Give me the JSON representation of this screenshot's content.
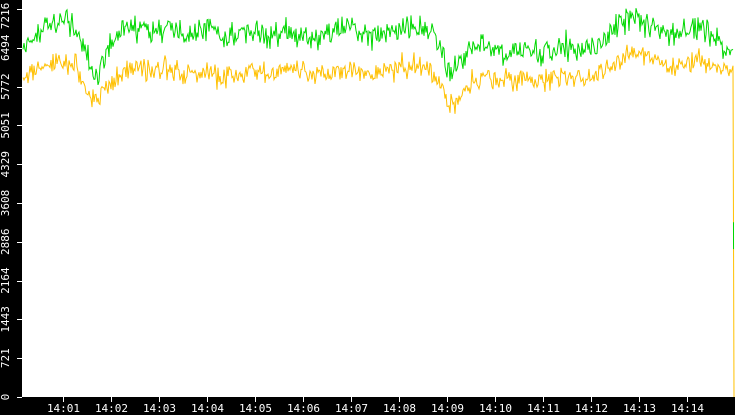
{
  "chart_data": {
    "type": "line",
    "title": "",
    "legend": "none",
    "grid": false,
    "background_color": "#ffffff",
    "axis_strip_color": "#000000",
    "tick_color": "#ffffff",
    "tick_text_color": "#ffffff",
    "x_unit": "time (HH:MM)",
    "x_range_minutes_after_1400": [
      0.15,
      15.0
    ],
    "ylim": [
      0,
      7216
    ],
    "y_ticks": [
      {
        "label": "0",
        "value": 0
      },
      {
        "label": "721",
        "value": 721
      },
      {
        "label": "1443",
        "value": 1443
      },
      {
        "label": "2164",
        "value": 2164
      },
      {
        "label": "2886",
        "value": 2886
      },
      {
        "label": "3608",
        "value": 3608
      },
      {
        "label": "4329",
        "value": 4329
      },
      {
        "label": "5051",
        "value": 5051
      },
      {
        "label": "5772",
        "value": 5772
      },
      {
        "label": "6494",
        "value": 6494
      },
      {
        "label": "7216",
        "value": 7216
      }
    ],
    "x_ticks": [
      {
        "label": "14:01",
        "minute": 1
      },
      {
        "label": "14:02",
        "minute": 2
      },
      {
        "label": "14:03",
        "minute": 3
      },
      {
        "label": "14:04",
        "minute": 4
      },
      {
        "label": "14:05",
        "minute": 5
      },
      {
        "label": "14:06",
        "minute": 6
      },
      {
        "label": "14:07",
        "minute": 7
      },
      {
        "label": "14:08",
        "minute": 8
      },
      {
        "label": "14:09",
        "minute": 9
      },
      {
        "label": "14:10",
        "minute": 10
      },
      {
        "label": "14:11",
        "minute": 11
      },
      {
        "label": "14:12",
        "minute": 12
      },
      {
        "label": "14:13",
        "minute": 13
      },
      {
        "label": "14:14",
        "minute": 14
      }
    ],
    "noise_seed": 97,
    "series": [
      {
        "name": "green-line",
        "color": "#00d800",
        "noise_amplitude": 290,
        "leading_edge_segment": {
          "from": 2750,
          "to": 3250
        },
        "points": [
          [
            0.15,
            6450
          ],
          [
            0.4,
            6700
          ],
          [
            0.7,
            6900
          ],
          [
            1.0,
            7000
          ],
          [
            1.3,
            6800
          ],
          [
            1.55,
            6150
          ],
          [
            1.7,
            5900
          ],
          [
            1.85,
            6250
          ],
          [
            2.0,
            6550
          ],
          [
            2.3,
            6800
          ],
          [
            2.6,
            6900
          ],
          [
            2.9,
            6800
          ],
          [
            3.2,
            6850
          ],
          [
            3.5,
            6750
          ],
          [
            3.8,
            6800
          ],
          [
            4.1,
            6850
          ],
          [
            4.4,
            6700
          ],
          [
            4.7,
            6750
          ],
          [
            5.0,
            6800
          ],
          [
            5.3,
            6700
          ],
          [
            5.6,
            6850
          ],
          [
            5.9,
            6750
          ],
          [
            6.2,
            6650
          ],
          [
            6.5,
            6750
          ],
          [
            6.8,
            6850
          ],
          [
            7.1,
            6800
          ],
          [
            7.4,
            6700
          ],
          [
            7.7,
            6750
          ],
          [
            8.0,
            6800
          ],
          [
            8.3,
            6900
          ],
          [
            8.6,
            6850
          ],
          [
            8.85,
            6500
          ],
          [
            9.05,
            6050
          ],
          [
            9.25,
            6150
          ],
          [
            9.5,
            6450
          ],
          [
            9.8,
            6550
          ],
          [
            10.1,
            6450
          ],
          [
            10.4,
            6400
          ],
          [
            10.7,
            6450
          ],
          [
            11.0,
            6380
          ],
          [
            11.3,
            6500
          ],
          [
            11.6,
            6450
          ],
          [
            11.9,
            6500
          ],
          [
            12.2,
            6600
          ],
          [
            12.5,
            6850
          ],
          [
            12.8,
            7050
          ],
          [
            13.1,
            6950
          ],
          [
            13.4,
            6820
          ],
          [
            13.7,
            6760
          ],
          [
            14.0,
            6800
          ],
          [
            14.3,
            6850
          ],
          [
            14.6,
            6650
          ],
          [
            14.95,
            6500
          ]
        ]
      },
      {
        "name": "yellow-line",
        "color": "#ffc000",
        "noise_amplitude": 240,
        "leading_edge_drop_to": 0,
        "points": [
          [
            0.15,
            5950
          ],
          [
            0.4,
            6100
          ],
          [
            0.7,
            6200
          ],
          [
            1.0,
            6250
          ],
          [
            1.3,
            6050
          ],
          [
            1.55,
            5650
          ],
          [
            1.7,
            5420
          ],
          [
            1.85,
            5720
          ],
          [
            2.0,
            5880
          ],
          [
            2.3,
            6050
          ],
          [
            2.6,
            6150
          ],
          [
            2.9,
            6060
          ],
          [
            3.2,
            6100
          ],
          [
            3.5,
            6010
          ],
          [
            3.8,
            6050
          ],
          [
            4.1,
            6090
          ],
          [
            4.4,
            5960
          ],
          [
            4.7,
            6020
          ],
          [
            5.0,
            6100
          ],
          [
            5.3,
            6000
          ],
          [
            5.6,
            6120
          ],
          [
            5.9,
            6040
          ],
          [
            6.2,
            5960
          ],
          [
            6.5,
            6020
          ],
          [
            6.8,
            6100
          ],
          [
            7.1,
            6060
          ],
          [
            7.4,
            5980
          ],
          [
            7.7,
            6020
          ],
          [
            8.0,
            6060
          ],
          [
            8.3,
            6130
          ],
          [
            8.6,
            6090
          ],
          [
            8.85,
            5800
          ],
          [
            9.05,
            5430
          ],
          [
            9.25,
            5600
          ],
          [
            9.5,
            5800
          ],
          [
            9.8,
            5950
          ],
          [
            10.1,
            5920
          ],
          [
            10.4,
            5890
          ],
          [
            10.7,
            5930
          ],
          [
            11.0,
            5870
          ],
          [
            11.3,
            5990
          ],
          [
            11.6,
            5940
          ],
          [
            11.9,
            5970
          ],
          [
            12.2,
            6060
          ],
          [
            12.5,
            6250
          ],
          [
            12.8,
            6420
          ],
          [
            13.1,
            6320
          ],
          [
            13.4,
            6230
          ],
          [
            13.7,
            6160
          ],
          [
            14.0,
            6200
          ],
          [
            14.3,
            6250
          ],
          [
            14.6,
            6060
          ],
          [
            14.95,
            6050
          ]
        ]
      }
    ]
  }
}
